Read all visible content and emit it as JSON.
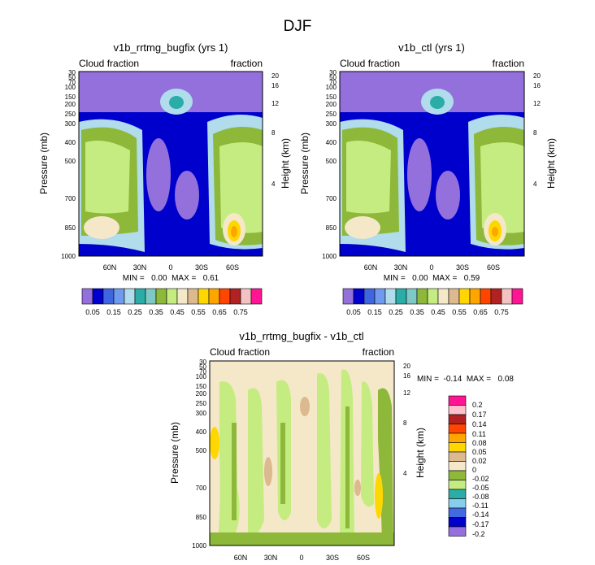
{
  "page_title": "DJF",
  "colors": {
    "levels": [
      "#9370db",
      "#0000cd",
      "#3f66e0",
      "#6f9af0",
      "#b0dcec",
      "#2aada7",
      "#7ec8c6",
      "#8db83a",
      "#c4ec80",
      "#f5e8c8",
      "#dcb98f",
      "#ffd700",
      "#ffa500",
      "#ff4500",
      "#b22222",
      "#f4c2c2",
      "#ff1493"
    ],
    "diff": [
      "#9370db",
      "#0000cd",
      "#4169e1",
      "#87ceeb",
      "#2aada7",
      "#c4ec80",
      "#8db83a",
      "#f5e8c8",
      "#dcb98f",
      "#ffd700",
      "#ffa500",
      "#ff4500",
      "#b22222",
      "#ffc0cb",
      "#ff1493"
    ]
  },
  "chart_data": [
    {
      "type": "heatmap",
      "title": "v1b_rrtmg_bugfix (yrs 1)",
      "left_label": "Cloud fraction",
      "right_label": "fraction",
      "ylabel": "Pressure (mb)",
      "y2label": "Height (km)",
      "y_ticks": [
        "30",
        "50",
        "70",
        "100",
        "150",
        "200",
        "250",
        "300",
        "400",
        "500",
        "700",
        "850",
        "1000"
      ],
      "y2_ticks": [
        "20",
        "16",
        "12",
        "8",
        "4"
      ],
      "x_ticks": [
        "60N",
        "30N",
        "0",
        "30S",
        "60S"
      ],
      "min_max": "MIN =   0.00  MAX =   0.61",
      "colorbar_labels": [
        "0.05",
        "0.15",
        "0.25",
        "0.35",
        "0.45",
        "0.55",
        "0.65",
        "0.75"
      ]
    },
    {
      "type": "heatmap",
      "title": "v1b_ctl (yrs 1)",
      "left_label": "Cloud fraction",
      "right_label": "fraction",
      "ylabel": "Pressure (mb)",
      "y2label": "Height (km)",
      "y_ticks": [
        "30",
        "50",
        "70",
        "100",
        "150",
        "200",
        "250",
        "300",
        "400",
        "500",
        "700",
        "850",
        "1000"
      ],
      "y2_ticks": [
        "20",
        "16",
        "12",
        "8",
        "4"
      ],
      "x_ticks": [
        "60N",
        "30N",
        "0",
        "30S",
        "60S"
      ],
      "min_max": "MIN =   0.00  MAX =   0.59",
      "colorbar_labels": [
        "0.05",
        "0.15",
        "0.25",
        "0.35",
        "0.45",
        "0.55",
        "0.65",
        "0.75"
      ]
    },
    {
      "type": "heatmap",
      "title": "v1b_rrtmg_bugfix - v1b_ctl",
      "left_label": "Cloud fraction",
      "right_label": "fraction",
      "ylabel": "Pressure (mb)",
      "y2label": "Height (km)",
      "y_ticks": [
        "30",
        "50",
        "70",
        "100",
        "150",
        "200",
        "250",
        "300",
        "400",
        "500",
        "700",
        "850",
        "1000"
      ],
      "y2_ticks": [
        "20",
        "16",
        "12",
        "8",
        "4"
      ],
      "x_ticks": [
        "60N",
        "30N",
        "0",
        "30S",
        "60S"
      ],
      "min_max": "MIN =  -0.14  MAX =   0.08",
      "colorbar_labels": [
        "0.2",
        "0.17",
        "0.14",
        "0.11",
        "0.08",
        "0.05",
        "0.02",
        "0",
        "-0.02",
        "-0.05",
        "-0.08",
        "-0.11",
        "-0.14",
        "-0.17",
        "-0.2"
      ]
    }
  ]
}
